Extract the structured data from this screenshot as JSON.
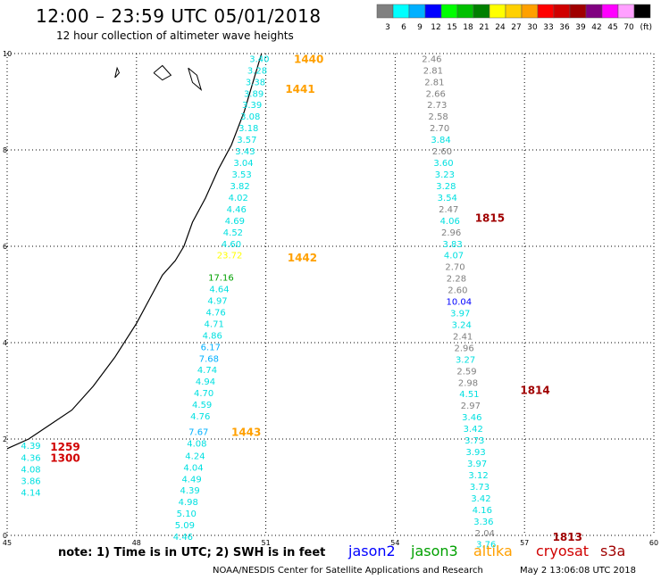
{
  "header": {
    "title": "12:00 – 23:59 UTC 05/01/2018",
    "subtitle": "12 hour collection of altimeter wave heights"
  },
  "legend": {
    "unit": "(ft)",
    "bins": [
      {
        "label": "3",
        "color": "#808080"
      },
      {
        "label": "6",
        "color": "#00ffff"
      },
      {
        "label": "9",
        "color": "#00b0ff"
      },
      {
        "label": "12",
        "color": "#0000ff"
      },
      {
        "label": "15",
        "color": "#00ff00"
      },
      {
        "label": "18",
        "color": "#00c000"
      },
      {
        "label": "21",
        "color": "#008000"
      },
      {
        "label": "24",
        "color": "#ffff00"
      },
      {
        "label": "27",
        "color": "#ffd000"
      },
      {
        "label": "30",
        "color": "#ffa000"
      },
      {
        "label": "33",
        "color": "#ff0000"
      },
      {
        "label": "36",
        "color": "#d00000"
      },
      {
        "label": "39",
        "color": "#a00000"
      },
      {
        "label": "42",
        "color": "#800080"
      },
      {
        "label": "45",
        "color": "#ff00ff"
      },
      {
        "label": "70",
        "color": "#ffa0ff"
      },
      {
        "label": "",
        "color": "#000000"
      }
    ]
  },
  "axes": {
    "x_ticks": [
      "45",
      "48",
      "51",
      "54",
      "57",
      "60"
    ],
    "y_ticks": [
      "0",
      "2",
      "4",
      "6",
      "8",
      "10"
    ],
    "xlim": [
      45,
      60
    ],
    "ylim": [
      0,
      10
    ]
  },
  "footer": {
    "note": "note: 1) Time is in UTC; 2) SWH is in feet",
    "credit": "NOAA/NESDIS Center for Satellite Applications and Research",
    "stamp": "May  2 13:06:08 UTC 2018",
    "satellites": [
      {
        "name": "jason2",
        "color": "#0000ff"
      },
      {
        "name": "jason3",
        "color": "#00a000"
      },
      {
        "name": "altika",
        "color": "#ffa000"
      },
      {
        "name": "cryosat",
        "color": "#d00000"
      },
      {
        "name": "s3a",
        "color": "#a00000"
      }
    ]
  },
  "coastline": [
    [
      45.0,
      1.8
    ],
    [
      45.5,
      2.0
    ],
    [
      46.0,
      2.3
    ],
    [
      46.5,
      2.6
    ],
    [
      47.0,
      3.1
    ],
    [
      47.5,
      3.7
    ],
    [
      48.0,
      4.4
    ],
    [
      48.3,
      4.9
    ],
    [
      48.6,
      5.4
    ],
    [
      48.9,
      5.7
    ],
    [
      49.1,
      6.0
    ],
    [
      49.3,
      6.5
    ],
    [
      49.6,
      7.0
    ],
    [
      49.9,
      7.6
    ],
    [
      50.2,
      8.1
    ],
    [
      50.5,
      8.8
    ],
    [
      50.7,
      9.4
    ],
    [
      50.9,
      10.0
    ]
  ],
  "islands": [
    {
      "outline": [
        [
          47.5,
          9.5
        ],
        [
          47.55,
          9.7
        ],
        [
          47.6,
          9.6
        ],
        [
          47.5,
          9.5
        ]
      ]
    },
    {
      "outline": [
        [
          48.4,
          9.6
        ],
        [
          48.6,
          9.75
        ],
        [
          48.8,
          9.55
        ],
        [
          48.6,
          9.45
        ],
        [
          48.4,
          9.6
        ]
      ]
    },
    {
      "outline": [
        [
          49.2,
          9.7
        ],
        [
          49.4,
          9.55
        ],
        [
          49.5,
          9.25
        ],
        [
          49.3,
          9.4
        ],
        [
          49.2,
          9.7
        ]
      ]
    }
  ],
  "passes": [
    {
      "time_labels": [
        {
          "text": "1259",
          "color": "#d00000",
          "x": 46.0,
          "y": 1.85
        },
        {
          "text": "1300",
          "color": "#d00000",
          "x": 46.0,
          "y": 1.62
        }
      ],
      "points": [
        {
          "value": "4.39",
          "color": "#00e0e0",
          "x": 45.55,
          "y": 1.87
        },
        {
          "value": "4.36",
          "color": "#00e0e0",
          "x": 45.55,
          "y": 1.62
        },
        {
          "value": "4.08",
          "color": "#00e0e0",
          "x": 45.55,
          "y": 1.38
        },
        {
          "value": "3.86",
          "color": "#00e0e0",
          "x": 45.55,
          "y": 1.14
        },
        {
          "value": "4.14",
          "color": "#00e0e0",
          "x": 45.55,
          "y": 0.9
        }
      ]
    },
    {
      "time_labels": [
        {
          "text": "1440",
          "color": "#ffa000",
          "x": 51.65,
          "y": 9.9
        },
        {
          "text": "1441",
          "color": "#ffa000",
          "x": 51.45,
          "y": 9.28
        },
        {
          "text": "1442",
          "color": "#ffa000",
          "x": 51.5,
          "y": 5.78
        },
        {
          "text": "1443",
          "color": "#ffa000",
          "x": 50.2,
          "y": 2.16
        }
      ],
      "points": [
        {
          "value": "3.40",
          "color": "#00e0e0",
          "x": 50.85,
          "y": 9.9
        },
        {
          "value": "3.28",
          "color": "#00e0e0",
          "x": 50.8,
          "y": 9.66
        },
        {
          "value": "3.38",
          "color": "#00e0e0",
          "x": 50.76,
          "y": 9.42
        },
        {
          "value": "3.89",
          "color": "#00e0e0",
          "x": 50.72,
          "y": 9.18
        },
        {
          "value": "3.39",
          "color": "#00e0e0",
          "x": 50.68,
          "y": 8.94
        },
        {
          "value": "3.08",
          "color": "#00e0e0",
          "x": 50.64,
          "y": 8.7
        },
        {
          "value": "3.18",
          "color": "#00e0e0",
          "x": 50.6,
          "y": 8.46
        },
        {
          "value": "3.57",
          "color": "#00e0e0",
          "x": 50.56,
          "y": 8.22
        },
        {
          "value": "3.43",
          "color": "#00e0e0",
          "x": 50.52,
          "y": 7.98
        },
        {
          "value": "3.04",
          "color": "#00e0e0",
          "x": 50.48,
          "y": 7.74
        },
        {
          "value": "3.53",
          "color": "#00e0e0",
          "x": 50.44,
          "y": 7.5
        },
        {
          "value": "3.82",
          "color": "#00e0e0",
          "x": 50.4,
          "y": 7.26
        },
        {
          "value": "4.02",
          "color": "#00e0e0",
          "x": 50.36,
          "y": 7.02
        },
        {
          "value": "4.46",
          "color": "#00e0e0",
          "x": 50.32,
          "y": 6.78
        },
        {
          "value": "4.69",
          "color": "#00e0e0",
          "x": 50.28,
          "y": 6.54
        },
        {
          "value": "4.52",
          "color": "#00e0e0",
          "x": 50.24,
          "y": 6.3
        },
        {
          "value": "4.60",
          "color": "#00e0e0",
          "x": 50.2,
          "y": 6.06
        },
        {
          "value": "23.72",
          "color": "#ffff00",
          "x": 50.16,
          "y": 5.82
        },
        {
          "value": "17.16",
          "color": "#00a000",
          "x": 49.96,
          "y": 5.36
        },
        {
          "value": "4.64",
          "color": "#00e0e0",
          "x": 49.92,
          "y": 5.12
        },
        {
          "value": "4.97",
          "color": "#00e0e0",
          "x": 49.88,
          "y": 4.88
        },
        {
          "value": "4.76",
          "color": "#00e0e0",
          "x": 49.84,
          "y": 4.64
        },
        {
          "value": "4.71",
          "color": "#00e0e0",
          "x": 49.8,
          "y": 4.4
        },
        {
          "value": "4.86",
          "color": "#00e0e0",
          "x": 49.76,
          "y": 4.16
        },
        {
          "value": "6.17",
          "color": "#00b0ff",
          "x": 49.72,
          "y": 3.92
        },
        {
          "value": "7.68",
          "color": "#00b0ff",
          "x": 49.68,
          "y": 3.68
        },
        {
          "value": "4.74",
          "color": "#00e0e0",
          "x": 49.64,
          "y": 3.44
        },
        {
          "value": "4.94",
          "color": "#00e0e0",
          "x": 49.6,
          "y": 3.2
        },
        {
          "value": "4.70",
          "color": "#00e0e0",
          "x": 49.56,
          "y": 2.96
        },
        {
          "value": "4.59",
          "color": "#00e0e0",
          "x": 49.52,
          "y": 2.72
        },
        {
          "value": "4.76",
          "color": "#00e0e0",
          "x": 49.48,
          "y": 2.48
        },
        {
          "value": "7.67",
          "color": "#00b0ff",
          "x": 49.44,
          "y": 2.16
        },
        {
          "value": "4.08",
          "color": "#00e0e0",
          "x": 49.4,
          "y": 1.92
        },
        {
          "value": "4.24",
          "color": "#00e0e0",
          "x": 49.36,
          "y": 1.66
        },
        {
          "value": "4.04",
          "color": "#00e0e0",
          "x": 49.32,
          "y": 1.42
        },
        {
          "value": "4.49",
          "color": "#00e0e0",
          "x": 49.28,
          "y": 1.18
        },
        {
          "value": "4.39",
          "color": "#00e0e0",
          "x": 49.24,
          "y": 0.94
        },
        {
          "value": "4.98",
          "color": "#00e0e0",
          "x": 49.2,
          "y": 0.7
        },
        {
          "value": "5.10",
          "color": "#00e0e0",
          "x": 49.16,
          "y": 0.46
        },
        {
          "value": "5.09",
          "color": "#00e0e0",
          "x": 49.12,
          "y": 0.22
        },
        {
          "value": "4.46",
          "color": "#00e0e0",
          "x": 49.08,
          "y": -0.02
        }
      ]
    },
    {
      "time_labels": [
        {
          "text": "1815",
          "color": "#a00000",
          "x": 55.85,
          "y": 6.6
        },
        {
          "text": "1814",
          "color": "#a00000",
          "x": 56.9,
          "y": 3.03
        },
        {
          "text": "1813",
          "color": "#a00000",
          "x": 57.65,
          "y": -0.02
        }
      ],
      "points": [
        {
          "value": "2.46",
          "color": "#808080",
          "x": 54.85,
          "y": 9.9
        },
        {
          "value": "2.81",
          "color": "#808080",
          "x": 54.88,
          "y": 9.66
        },
        {
          "value": "2.81",
          "color": "#808080",
          "x": 54.91,
          "y": 9.42
        },
        {
          "value": "2.66",
          "color": "#808080",
          "x": 54.94,
          "y": 9.18
        },
        {
          "value": "2.73",
          "color": "#808080",
          "x": 54.97,
          "y": 8.94
        },
        {
          "value": "2.58",
          "color": "#808080",
          "x": 55.0,
          "y": 8.7
        },
        {
          "value": "2.70",
          "color": "#808080",
          "x": 55.03,
          "y": 8.46
        },
        {
          "value": "3.84",
          "color": "#00e0e0",
          "x": 55.06,
          "y": 8.22
        },
        {
          "value": "2.60",
          "color": "#808080",
          "x": 55.09,
          "y": 7.98
        },
        {
          "value": "3.60",
          "color": "#00e0e0",
          "x": 55.12,
          "y": 7.74
        },
        {
          "value": "3.23",
          "color": "#00e0e0",
          "x": 55.15,
          "y": 7.5
        },
        {
          "value": "3.28",
          "color": "#00e0e0",
          "x": 55.18,
          "y": 7.26
        },
        {
          "value": "3.54",
          "color": "#00e0e0",
          "x": 55.21,
          "y": 7.02
        },
        {
          "value": "2.47",
          "color": "#808080",
          "x": 55.24,
          "y": 6.78
        },
        {
          "value": "4.06",
          "color": "#00e0e0",
          "x": 55.27,
          "y": 6.54
        },
        {
          "value": "2.96",
          "color": "#808080",
          "x": 55.3,
          "y": 6.3
        },
        {
          "value": "3.83",
          "color": "#00e0e0",
          "x": 55.33,
          "y": 6.06
        },
        {
          "value": "4.07",
          "color": "#00e0e0",
          "x": 55.36,
          "y": 5.82
        },
        {
          "value": "2.70",
          "color": "#808080",
          "x": 55.39,
          "y": 5.58
        },
        {
          "value": "2.28",
          "color": "#808080",
          "x": 55.42,
          "y": 5.34
        },
        {
          "value": "2.60",
          "color": "#808080",
          "x": 55.45,
          "y": 5.1
        },
        {
          "value": "10.04",
          "color": "#0000ff",
          "x": 55.48,
          "y": 4.86
        },
        {
          "value": "3.97",
          "color": "#00e0e0",
          "x": 55.51,
          "y": 4.62
        },
        {
          "value": "3.24",
          "color": "#00e0e0",
          "x": 55.54,
          "y": 4.38
        },
        {
          "value": "2.41",
          "color": "#808080",
          "x": 55.57,
          "y": 4.14
        },
        {
          "value": "2.96",
          "color": "#808080",
          "x": 55.6,
          "y": 3.9
        },
        {
          "value": "3.27",
          "color": "#00e0e0",
          "x": 55.63,
          "y": 3.66
        },
        {
          "value": "2.59",
          "color": "#808080",
          "x": 55.66,
          "y": 3.42
        },
        {
          "value": "2.98",
          "color": "#808080",
          "x": 55.69,
          "y": 3.18
        },
        {
          "value": "4.51",
          "color": "#00e0e0",
          "x": 55.72,
          "y": 2.94
        },
        {
          "value": "2.97",
          "color": "#808080",
          "x": 55.75,
          "y": 2.7
        },
        {
          "value": "3.46",
          "color": "#00e0e0",
          "x": 55.78,
          "y": 2.46
        },
        {
          "value": "3.42",
          "color": "#00e0e0",
          "x": 55.81,
          "y": 2.22
        },
        {
          "value": "3.73",
          "color": "#00e0e0",
          "x": 55.84,
          "y": 1.98
        },
        {
          "value": "3.93",
          "color": "#00e0e0",
          "x": 55.87,
          "y": 1.74
        },
        {
          "value": "3.97",
          "color": "#00e0e0",
          "x": 55.9,
          "y": 1.5
        },
        {
          "value": "3.12",
          "color": "#00e0e0",
          "x": 55.93,
          "y": 1.26
        },
        {
          "value": "3.73",
          "color": "#00e0e0",
          "x": 55.96,
          "y": 1.02
        },
        {
          "value": "3.42",
          "color": "#00e0e0",
          "x": 55.99,
          "y": 0.78
        },
        {
          "value": "4.16",
          "color": "#00e0e0",
          "x": 56.02,
          "y": 0.54
        },
        {
          "value": "3.36",
          "color": "#00e0e0",
          "x": 56.05,
          "y": 0.3
        },
        {
          "value": "2.04",
          "color": "#808080",
          "x": 56.08,
          "y": 0.06
        },
        {
          "value": "3.76",
          "color": "#00e0e0",
          "x": 56.11,
          "y": -0.18
        }
      ]
    }
  ]
}
